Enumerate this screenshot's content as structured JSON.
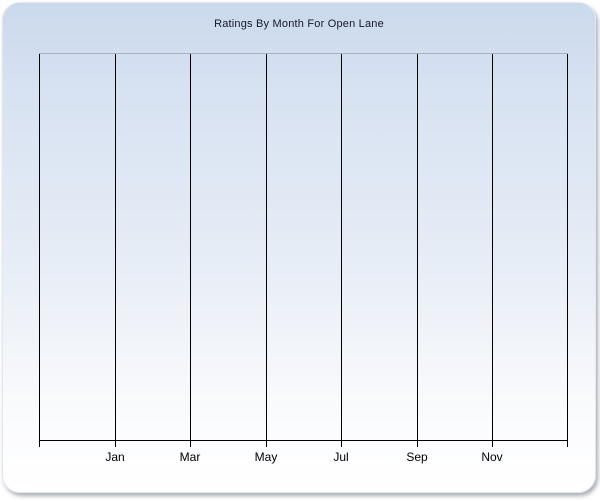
{
  "chart_data": {
    "type": "line",
    "title": "Ratings By Month For Open Lane",
    "xlabel": "",
    "ylabel": "",
    "x_tick_labels": [
      "Jan",
      "Mar",
      "May",
      "Jul",
      "Sep",
      "Nov"
    ],
    "gridline_count": 8,
    "grid": "vertical-only",
    "legend": "none",
    "series": []
  },
  "colors": {
    "panel_gradient_top": "#cbd9ed",
    "panel_gradient_mid": "#e4ebf5",
    "panel_gradient_low": "#fafbfd",
    "panel_gradient_bottom": "#ffffff",
    "gridline": "#000000",
    "plot_top_border": "#a7b0bf",
    "title_text": "#141a26",
    "axis_text": "#000000"
  }
}
